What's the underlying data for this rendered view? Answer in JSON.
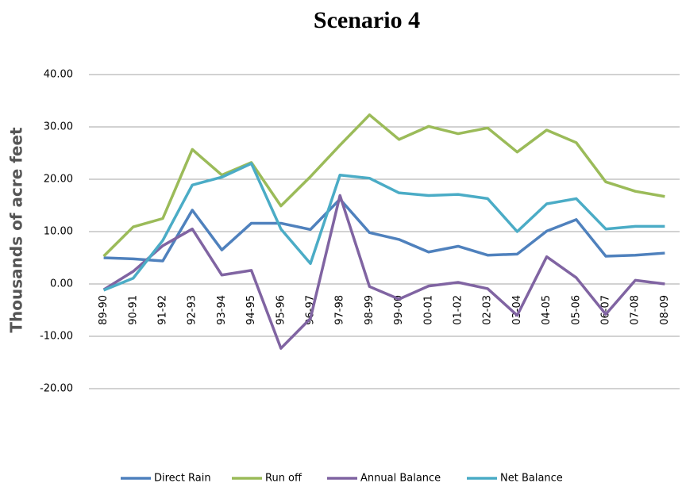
{
  "chart_data": {
    "type": "line",
    "title": "Scenario 4",
    "y_label": "Thousands of acre feet",
    "categories": [
      "89-90",
      "90-91",
      "91-92",
      "92-93",
      "93-94",
      "94-95",
      "95-96",
      "96-97",
      "97-98",
      "98-99",
      "99-00",
      "00-01",
      "01-02",
      "02-03",
      "03-04",
      "04-05",
      "05-06",
      "06-07",
      "07-08",
      "08-09"
    ],
    "series": [
      {
        "name": "Direct Rain",
        "color": "#4f81bd",
        "values": [
          5.0,
          4.8,
          4.4,
          14.1,
          6.5,
          11.6,
          11.6,
          10.4,
          16.2,
          9.8,
          8.5,
          6.1,
          7.2,
          5.5,
          5.7,
          10.1,
          12.3,
          5.3,
          5.5,
          5.9
        ]
      },
      {
        "name": "Run off",
        "color": "#9bbb59",
        "values": [
          5.3,
          10.9,
          12.5,
          25.7,
          20.8,
          23.2,
          14.9,
          20.5,
          26.5,
          32.3,
          27.6,
          30.1,
          28.7,
          29.8,
          25.2,
          29.4,
          27.0,
          19.5,
          17.7,
          16.7
        ]
      },
      {
        "name": "Annual Balance",
        "color": "#8064a2",
        "values": [
          -1.1,
          2.4,
          7.3,
          10.5,
          1.7,
          2.6,
          -12.3,
          -6.6,
          16.9,
          -0.5,
          -2.9,
          -0.4,
          0.3,
          -0.9,
          -6.0,
          5.2,
          1.2,
          -5.8,
          0.7,
          0.0
        ]
      },
      {
        "name": "Net Balance",
        "color": "#4bacc6",
        "values": [
          -1.2,
          1.1,
          8.3,
          18.9,
          20.4,
          23.0,
          10.5,
          3.9,
          20.8,
          20.2,
          17.4,
          16.9,
          17.1,
          16.3,
          10.0,
          15.3,
          16.3,
          10.5,
          11.0,
          11.0
        ]
      }
    ],
    "ylim": [
      -20,
      40
    ],
    "yticks": [
      {
        "value": -20,
        "label": "-20.00"
      },
      {
        "value": -10,
        "label": "-10.00"
      },
      {
        "value": 0,
        "label": "0.00"
      },
      {
        "value": 10,
        "label": "10.00"
      },
      {
        "value": 20,
        "label": "20.00"
      },
      {
        "value": 30,
        "label": "30.00"
      },
      {
        "value": 40,
        "label": "40.00"
      }
    ],
    "grid": true,
    "legend": "bottom"
  }
}
